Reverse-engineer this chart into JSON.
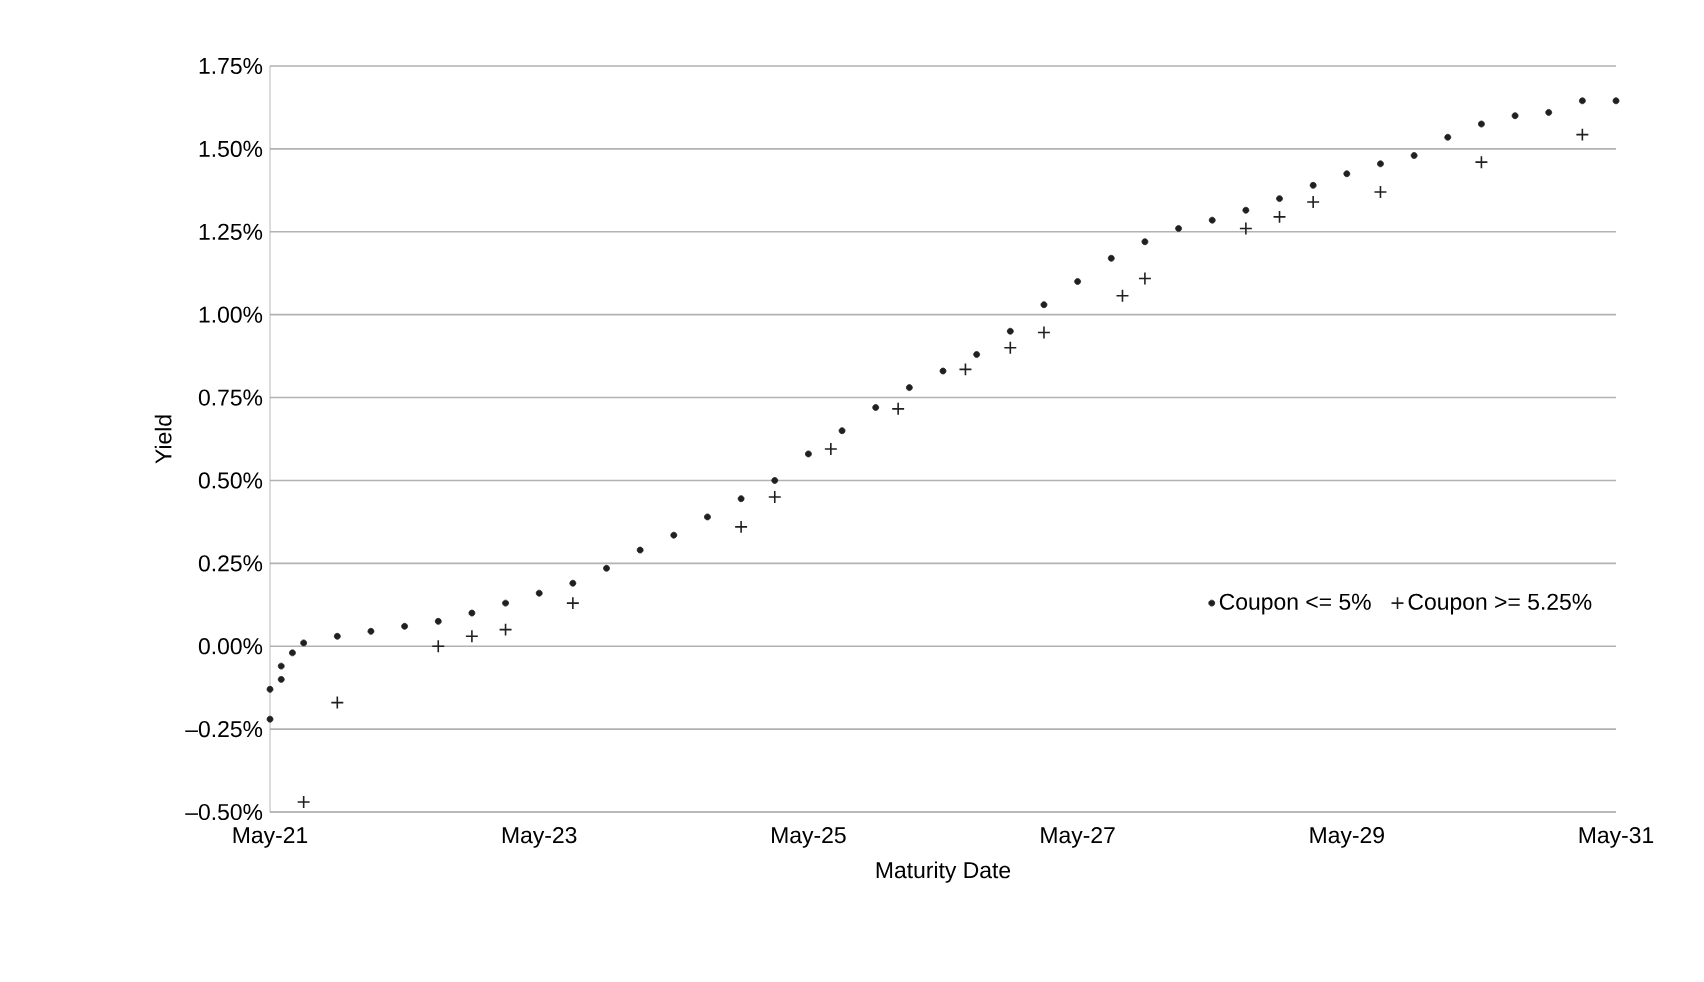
{
  "chart_data": {
    "type": "scatter",
    "xlabel": "Maturity Date",
    "ylabel": "Yield",
    "xlim": [
      "2021-05",
      "2031-05"
    ],
    "xticks": [
      {
        "value": "2021-05",
        "label": "May-21"
      },
      {
        "value": "2023-05",
        "label": "May-23"
      },
      {
        "value": "2025-05",
        "label": "May-25"
      },
      {
        "value": "2027-05",
        "label": "May-27"
      },
      {
        "value": "2029-05",
        "label": "May-29"
      },
      {
        "value": "2031-05",
        "label": "May-31"
      }
    ],
    "ylim": [
      -0.5,
      1.75
    ],
    "yticks": [
      {
        "value": -0.5,
        "label": "–0.50%"
      },
      {
        "value": -0.25,
        "label": "–0.25%"
      },
      {
        "value": 0,
        "label": "0.00%"
      },
      {
        "value": 0.25,
        "label": "0.25%"
      },
      {
        "value": 0.5,
        "label": "0.50%"
      },
      {
        "value": 0.75,
        "label": "0.75%"
      },
      {
        "value": 1.0,
        "label": "1.00%"
      },
      {
        "value": 1.25,
        "label": "1.25%"
      },
      {
        "value": 1.5,
        "label": "1.50%"
      },
      {
        "value": 1.75,
        "label": "1.75%"
      }
    ],
    "grid": "y",
    "legend": "right",
    "series": [
      {
        "name": "Coupon <= 5%",
        "color": "#231f20",
        "marker": "circle",
        "x": [
          "2021-05",
          "2021-05",
          "2021-06",
          "2021-06",
          "2021-07",
          "2021-08",
          "2021-11",
          "2022-02",
          "2022-05",
          "2022-08",
          "2022-11",
          "2023-02",
          "2023-05",
          "2023-08",
          "2023-11",
          "2024-02",
          "2024-05",
          "2024-08",
          "2024-11",
          "2025-02",
          "2025-05",
          "2025-08",
          "2025-11",
          "2026-02",
          "2026-05",
          "2026-08",
          "2026-11",
          "2027-02",
          "2027-05",
          "2027-08",
          "2027-11",
          "2028-02",
          "2028-05",
          "2028-08",
          "2028-11",
          "2029-02",
          "2029-05",
          "2029-08",
          "2029-11",
          "2030-02",
          "2030-05",
          "2030-08",
          "2030-11",
          "2031-02",
          "2031-05"
        ],
        "values": [
          -0.22,
          -0.13,
          -0.1,
          -0.06,
          -0.02,
          0.01,
          0.03,
          0.045,
          0.06,
          0.075,
          0.1,
          0.13,
          0.16,
          0.19,
          0.235,
          0.29,
          0.335,
          0.39,
          0.445,
          0.5,
          0.58,
          0.65,
          0.72,
          0.78,
          0.83,
          0.88,
          0.95,
          1.03,
          1.1,
          1.17,
          1.22,
          1.26,
          1.285,
          1.315,
          1.35,
          1.39,
          1.425,
          1.455,
          1.48,
          1.535,
          1.575,
          1.6,
          1.61,
          1.645,
          1.645
        ]
      },
      {
        "name": "Coupon >= 5.25%",
        "color": "#231f20",
        "marker": "cross",
        "x": [
          "2021-08",
          "2021-11",
          "2022-08",
          "2022-11",
          "2023-02",
          "2023-08",
          "2024-11",
          "2025-02",
          "2025-07",
          "2026-01",
          "2026-07",
          "2026-11",
          "2027-02",
          "2027-09",
          "2027-11",
          "2028-08",
          "2028-11",
          "2029-02",
          "2029-08",
          "2030-05",
          "2031-02"
        ],
        "values": [
          -0.47,
          -0.17,
          0.0,
          0.03,
          0.05,
          0.13,
          0.36,
          0.45,
          0.595,
          0.716,
          0.835,
          0.9,
          0.946,
          1.057,
          1.109,
          1.26,
          1.295,
          1.34,
          1.37,
          1.46,
          1.543
        ]
      }
    ]
  }
}
